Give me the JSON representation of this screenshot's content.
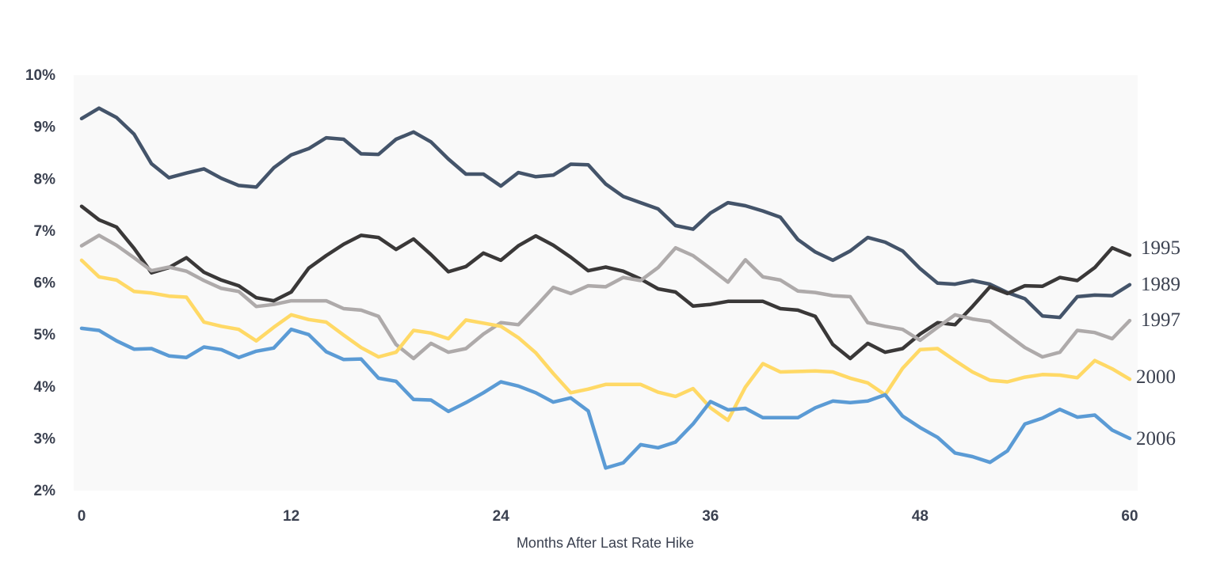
{
  "chart_data": {
    "type": "line",
    "title": "",
    "xlabel": "Months After Last Rate Hike",
    "ylabel": "",
    "xlim": [
      0,
      60
    ],
    "ylim": [
      2,
      10
    ],
    "x_ticks": [
      0,
      12,
      24,
      36,
      48,
      60
    ],
    "y_ticks": [
      2,
      3,
      4,
      5,
      6,
      7,
      8,
      9,
      10
    ],
    "y_tick_labels": [
      "2%",
      "3%",
      "4%",
      "5%",
      "6%",
      "7%",
      "8%",
      "9%",
      "10%"
    ],
    "grid": false,
    "legend": "direct labels at right end of lines",
    "series": [
      {
        "name": "1989",
        "color": "#44546a",
        "values": [
          9.15,
          9.35,
          9.17,
          8.85,
          8.28,
          8.01,
          8.1,
          8.18,
          8.0,
          7.86,
          7.83,
          8.2,
          8.45,
          8.57,
          8.78,
          8.75,
          8.47,
          8.46,
          8.75,
          8.89,
          8.7,
          8.37,
          8.08,
          8.08,
          7.85,
          8.11,
          8.03,
          8.06,
          8.27,
          8.26,
          7.89,
          7.65,
          7.53,
          7.41,
          7.09,
          7.02,
          7.33,
          7.53,
          7.47,
          7.37,
          7.25,
          6.82,
          6.58,
          6.42,
          6.6,
          6.86,
          6.77,
          6.6,
          6.26,
          5.98,
          5.96,
          6.03,
          5.96,
          5.8,
          5.68,
          5.35,
          5.32,
          5.72,
          5.75,
          5.74,
          5.95
        ]
      },
      {
        "name": "1995",
        "color": "#3a3838",
        "values": [
          7.46,
          7.2,
          7.06,
          6.65,
          6.18,
          6.28,
          6.47,
          6.19,
          6.04,
          5.93,
          5.7,
          5.64,
          5.81,
          6.27,
          6.51,
          6.73,
          6.9,
          6.86,
          6.63,
          6.83,
          6.53,
          6.2,
          6.3,
          6.56,
          6.42,
          6.7,
          6.89,
          6.71,
          6.48,
          6.22,
          6.29,
          6.21,
          6.06,
          5.87,
          5.81,
          5.54,
          5.57,
          5.63,
          5.63,
          5.63,
          5.49,
          5.46,
          5.34,
          4.8,
          4.53,
          4.82,
          4.65,
          4.72,
          5.0,
          5.22,
          5.18,
          5.53,
          5.91,
          5.78,
          5.93,
          5.92,
          6.09,
          6.03,
          6.28,
          6.66,
          6.52
        ]
      },
      {
        "name": "1997",
        "color": "#aeaaaa",
        "values": [
          6.7,
          6.9,
          6.71,
          6.47,
          6.22,
          6.29,
          6.21,
          6.03,
          5.88,
          5.82,
          5.53,
          5.57,
          5.64,
          5.64,
          5.64,
          5.49,
          5.46,
          5.34,
          4.8,
          4.53,
          4.82,
          4.65,
          4.72,
          5.0,
          5.22,
          5.18,
          5.53,
          5.9,
          5.78,
          5.93,
          5.91,
          6.09,
          6.03,
          6.28,
          6.66,
          6.51,
          6.26,
          6.0,
          6.43,
          6.1,
          6.04,
          5.83,
          5.8,
          5.74,
          5.72,
          5.22,
          5.15,
          5.09,
          4.88,
          5.13,
          5.37,
          5.29,
          5.24,
          4.99,
          4.74,
          4.56,
          4.65,
          5.07,
          5.03,
          4.91,
          5.26
        ]
      },
      {
        "name": "2000",
        "color": "#ffd966",
        "values": [
          6.42,
          6.1,
          6.04,
          5.82,
          5.79,
          5.73,
          5.71,
          5.23,
          5.15,
          5.09,
          4.87,
          5.13,
          5.37,
          5.28,
          5.23,
          4.98,
          4.74,
          4.56,
          4.65,
          5.07,
          5.02,
          4.91,
          5.27,
          5.21,
          5.15,
          4.93,
          4.64,
          4.24,
          3.87,
          3.94,
          4.03,
          4.03,
          4.03,
          3.88,
          3.8,
          3.95,
          3.58,
          3.34,
          3.98,
          4.43,
          4.27,
          4.28,
          4.29,
          4.27,
          4.15,
          4.06,
          3.83,
          4.34,
          4.7,
          4.72,
          4.49,
          4.27,
          4.11,
          4.08,
          4.17,
          4.22,
          4.21,
          4.16,
          4.49,
          4.33,
          4.13
        ]
      },
      {
        "name": "2006",
        "color": "#5b9bd5",
        "values": [
          5.11,
          5.07,
          4.87,
          4.71,
          4.72,
          4.58,
          4.55,
          4.75,
          4.7,
          4.55,
          4.67,
          4.73,
          5.09,
          4.99,
          4.66,
          4.51,
          4.52,
          4.15,
          4.09,
          3.74,
          3.73,
          3.51,
          3.68,
          3.87,
          4.08,
          4.0,
          3.87,
          3.69,
          3.77,
          3.52,
          2.42,
          2.52,
          2.87,
          2.81,
          2.92,
          3.27,
          3.7,
          3.54,
          3.57,
          3.39,
          3.39,
          3.39,
          3.58,
          3.71,
          3.68,
          3.71,
          3.83,
          3.42,
          3.2,
          3.01,
          2.71,
          2.64,
          2.53,
          2.75,
          3.27,
          3.38,
          3.55,
          3.4,
          3.44,
          3.15,
          2.99
        ]
      }
    ]
  }
}
